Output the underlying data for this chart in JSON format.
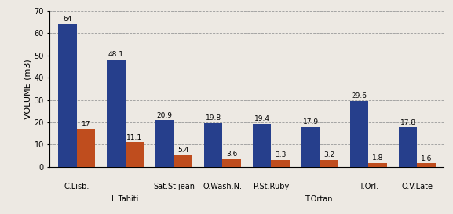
{
  "groups": [
    "C.Lisb.",
    "L.Tahiti",
    "Sat.St.jean",
    "O.Wash.N.",
    "P.St.Ruby",
    "T.Ortan.",
    "T.Orl.",
    "O.V.Late"
  ],
  "top_labels": [
    "C.Lisb.",
    "",
    "Sat.St.jean",
    "O.Wash.N.",
    "P.St.Ruby",
    "",
    "T.Orl.",
    "O.V.Late"
  ],
  "bottom_labels": [
    "",
    "L.Tahiti",
    "",
    "",
    "",
    "T.Ortan.",
    "",
    ""
  ],
  "blue_values": [
    64,
    48.1,
    20.9,
    19.8,
    19.4,
    17.9,
    29.6,
    17.8
  ],
  "orange_values": [
    17,
    11.1,
    5.4,
    3.6,
    3.3,
    3.2,
    1.8,
    1.6
  ],
  "blue_color": "#263F8C",
  "orange_color": "#BF4D1E",
  "ylabel": "VOLUME (m3)",
  "ylim": [
    0,
    70
  ],
  "yticks": [
    0,
    10,
    20,
    30,
    40,
    50,
    60,
    70
  ],
  "bar_width": 0.38,
  "background_color": "#ede9e3",
  "plot_bg_color": "#ede9e3",
  "grid_color": "#999999",
  "ylabel_fontsize": 8,
  "tick_fontsize": 7,
  "value_fontsize": 6.5,
  "xlabel_top_fontsize": 7,
  "xlabel_bottom_fontsize": 7
}
